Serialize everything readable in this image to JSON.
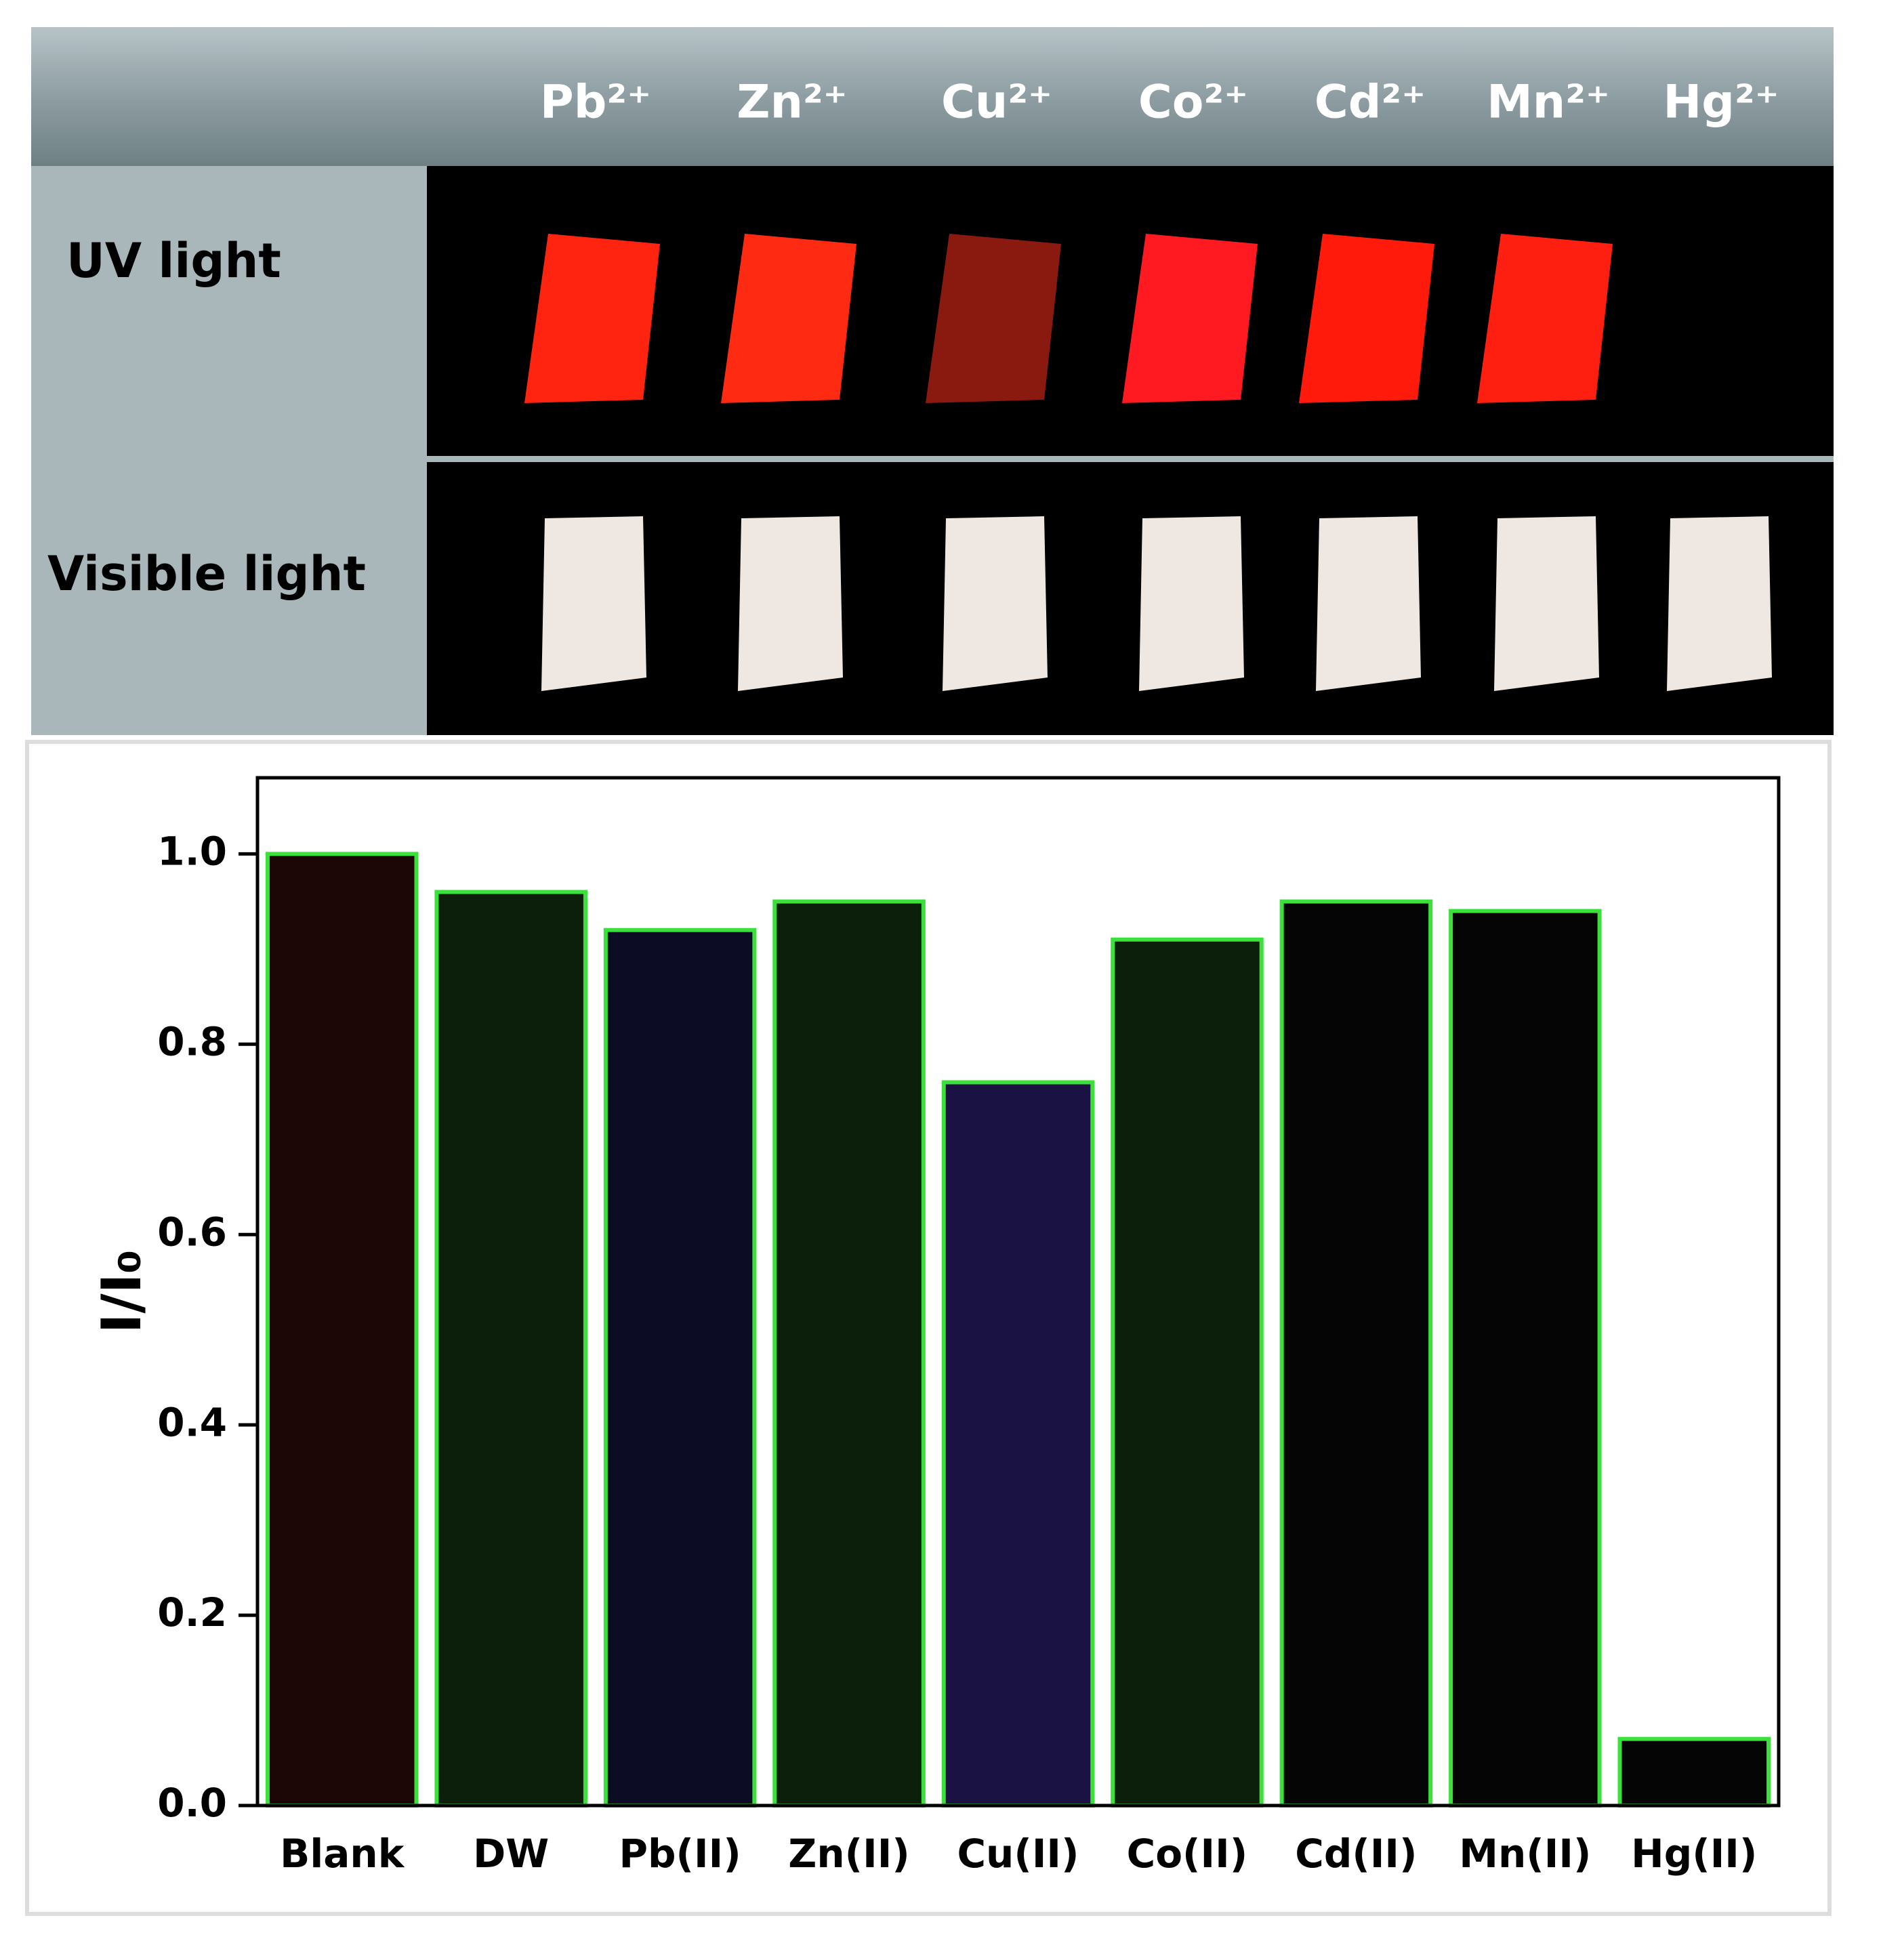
{
  "panel": {
    "columns": [
      "Pb²⁺",
      "Zn²⁺",
      "Cu²⁺",
      "Co²⁺",
      "Cd²⁺",
      "Mn²⁺",
      "Hg²⁺"
    ],
    "rows": [
      "UV light",
      "Visible light"
    ]
  },
  "chart_data": {
    "type": "bar",
    "ylabel": "I/I₀",
    "categories": [
      "Blank",
      "DW",
      "Pb(II)",
      "Zn(II)",
      "Cu(II)",
      "Co(II)",
      "Cd(II)",
      "Mn(II)",
      "Hg(II)"
    ],
    "values": [
      1.0,
      0.96,
      0.92,
      0.95,
      0.76,
      0.91,
      0.95,
      0.94,
      0.07
    ],
    "colors": [
      "#1c0606",
      "#0b1f0b",
      "#0c0c24",
      "#0b1f0b",
      "#1b1244",
      "#0b1f0b",
      "#050505",
      "#050505",
      "#050505"
    ],
    "edgecolor": "#3be03b",
    "ylim": [
      0,
      1.08
    ],
    "yticks": [
      {
        "value": 0,
        "label": "0.0"
      },
      0.2,
      0.4,
      0.6,
      0.8,
      {
        "value": 1,
        "label": "1.0"
      }
    ]
  }
}
